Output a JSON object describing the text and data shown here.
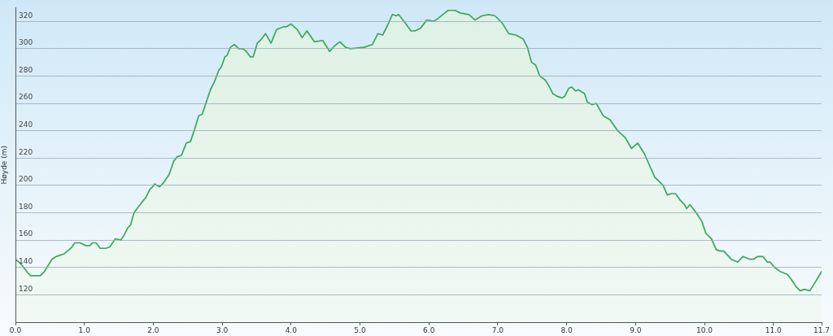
{
  "chart_data": {
    "type": "area",
    "ylabel": "Høyde (m)",
    "color": "#3ca65c",
    "grid": "y",
    "x": [
      0,
      0.07,
      0.12,
      0.18,
      0.22,
      0.32,
      0.36,
      0.42,
      0.53,
      0.59,
      0.65,
      0.71,
      0.78,
      0.82,
      0.86,
      0.94,
      1.02,
      1.08,
      1.12,
      1.17,
      1.23,
      1.31,
      1.37,
      1.45,
      1.53,
      1.58,
      1.63,
      1.67,
      1.72,
      1.78,
      1.84,
      1.89,
      1.95,
      1.99,
      2.02,
      2.09,
      2.15,
      2.23,
      2.3,
      2.35,
      2.41,
      2.48,
      2.54,
      2.6,
      2.66,
      2.71,
      2.77,
      2.83,
      2.89,
      2.95,
      2.99,
      3.04,
      3.07,
      3.12,
      3.18,
      3.24,
      3.3,
      3.35,
      3.41,
      3.45,
      3.51,
      3.57,
      3.63,
      3.71,
      3.79,
      3.89,
      3.93,
      4.0,
      4.09,
      4.16,
      4.23,
      4.34,
      4.46,
      4.56,
      4.63,
      4.71,
      4.79,
      4.86,
      5.06,
      5.18,
      5.26,
      5.33,
      5.4,
      5.47,
      5.53,
      5.56,
      5.64,
      5.74,
      5.8,
      5.88,
      5.97,
      6.07,
      6.13,
      6.23,
      6.28,
      6.38,
      6.46,
      6.58,
      6.67,
      6.77,
      6.87,
      6.96,
      7.06,
      7.16,
      7.26,
      7.37,
      7.43,
      7.49,
      7.55,
      7.61,
      7.69,
      7.74,
      7.8,
      7.87,
      7.93,
      7.97,
      8.03,
      8.07,
      8.13,
      8.17,
      8.26,
      8.3,
      8.37,
      8.43,
      8.53,
      8.63,
      8.74,
      8.85,
      8.94,
      9.03,
      9.13,
      9.19,
      9.28,
      9.4,
      9.46,
      9.52,
      9.58,
      9.65,
      9.71,
      9.74,
      9.79,
      9.88,
      9.96,
      10.02,
      10.1,
      10.17,
      10.23,
      10.28,
      10.39,
      10.48,
      10.56,
      10.66,
      10.71,
      10.77,
      10.85,
      10.91,
      10.95,
      11.02,
      11.1,
      11.2,
      11.25,
      11.33,
      11.39,
      11.45,
      11.53,
      11.58,
      11.64,
      11.7
    ],
    "values": [
      146,
      143,
      140,
      136,
      134,
      134,
      134,
      137,
      146,
      148,
      149,
      150,
      153,
      155,
      158,
      158,
      156,
      156,
      158,
      158,
      154,
      154,
      155,
      161,
      160,
      164,
      169,
      171,
      180,
      184,
      188,
      191,
      197,
      199,
      201,
      199,
      202,
      208,
      218,
      221,
      222,
      231,
      232,
      241,
      251,
      252,
      261,
      270,
      276,
      284,
      287,
      294,
      295,
      301,
      303,
      300,
      300,
      298,
      294,
      294,
      304,
      307,
      311,
      304,
      314,
      316,
      316,
      318,
      314,
      308,
      313,
      305,
      306,
      298,
      302,
      305,
      301,
      300,
      301,
      303,
      311,
      310,
      317,
      325,
      324,
      325,
      320,
      313,
      313,
      315,
      321,
      320,
      322,
      326,
      328,
      328,
      326,
      325,
      321,
      324,
      325,
      324,
      319,
      311,
      310,
      307,
      301,
      290,
      288,
      280,
      277,
      273,
      267,
      265,
      264,
      265,
      271,
      272,
      269,
      270,
      267,
      261,
      259,
      260,
      251,
      248,
      240,
      235,
      227,
      231,
      223,
      216,
      206,
      200,
      193,
      194,
      194,
      189,
      186,
      183,
      186,
      180,
      174,
      165,
      161,
      153,
      152,
      152,
      146,
      144,
      148,
      146,
      146,
      148,
      148,
      144,
      144,
      140,
      137,
      135,
      132,
      126,
      123,
      124,
      123,
      127,
      132,
      137
    ],
    "xlim": [
      0,
      11.7
    ],
    "ylim": [
      100,
      330
    ],
    "xticks": [
      {
        "value": 0,
        "label": "0.0"
      },
      {
        "value": 1,
        "label": "1.0"
      },
      {
        "value": 2,
        "label": "2.0"
      },
      {
        "value": 3,
        "label": "3.0"
      },
      {
        "value": 4,
        "label": "4.0"
      },
      {
        "value": 5,
        "label": "5.0"
      },
      {
        "value": 6,
        "label": "6.0"
      },
      {
        "value": 7,
        "label": "7.0"
      },
      {
        "value": 8,
        "label": "8.0"
      },
      {
        "value": 9,
        "label": "9.0"
      },
      {
        "value": 10,
        "label": "10.0"
      },
      {
        "value": 11,
        "label": "11.0"
      },
      11.7
    ],
    "yticks": [
      120,
      140,
      160,
      180,
      200,
      220,
      240,
      260,
      280,
      300,
      320
    ]
  }
}
